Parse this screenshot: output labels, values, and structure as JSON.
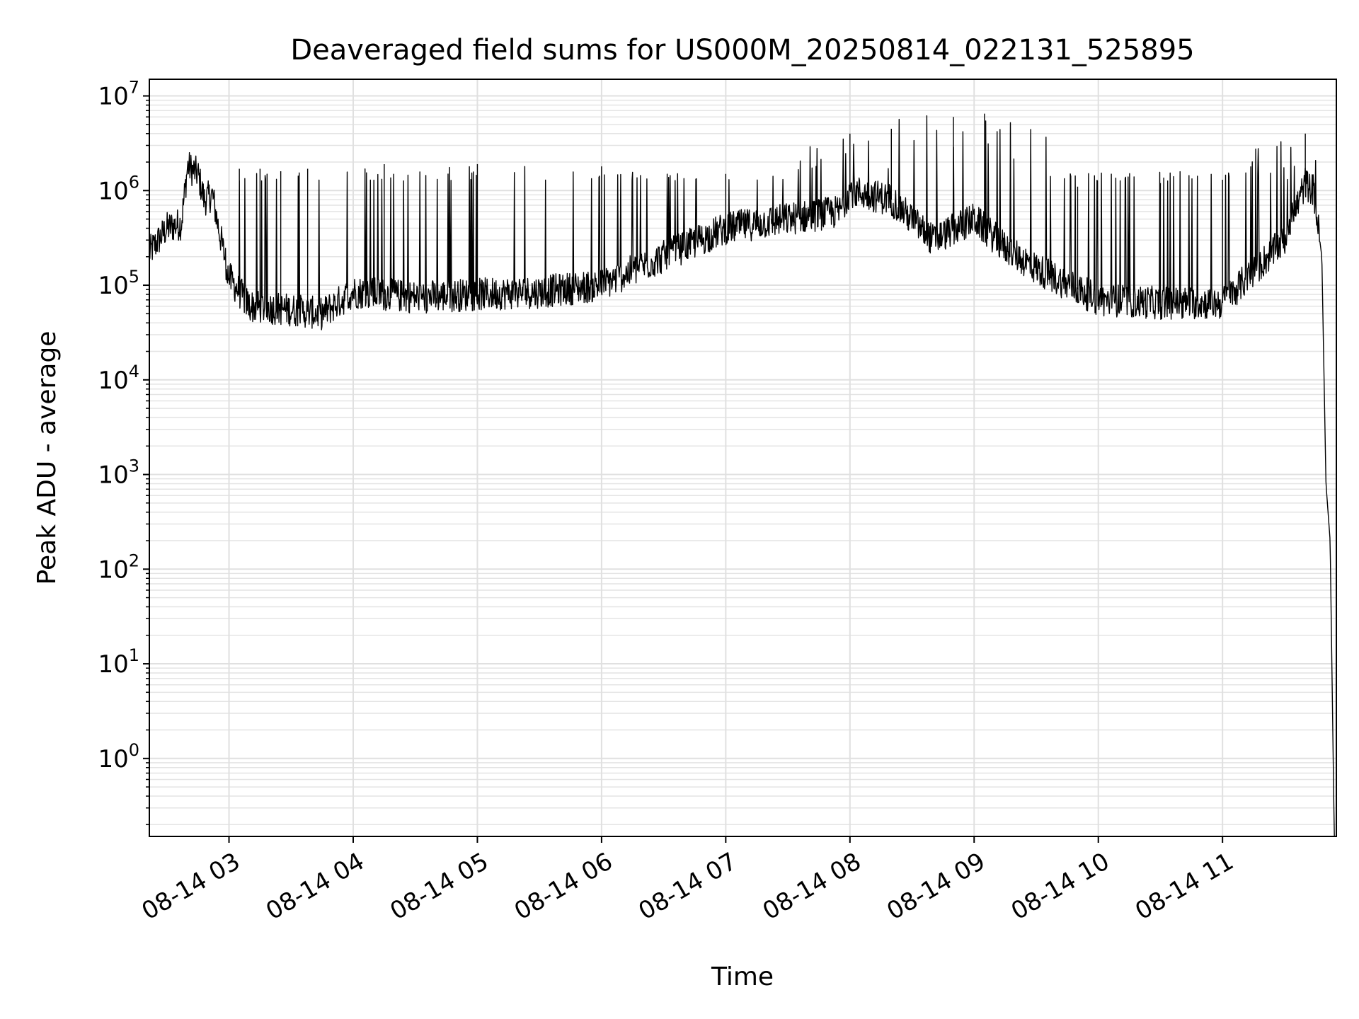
{
  "chart_data": {
    "type": "line",
    "title": "Deaveraged field sums for US000M_20250814_022131_525895",
    "xlabel": "Time",
    "ylabel": "Peak ADU - average",
    "yscale": "log",
    "ylim": [
      0.15,
      15000000
    ],
    "xlim": [
      "2025-08-14 02:21:31",
      "2025-08-14 11:55:00"
    ],
    "grid": true,
    "x_ticks": [
      {
        "time": "2025-08-14 03:00",
        "label": "08-14 03"
      },
      {
        "time": "2025-08-14 04:00",
        "label": "08-14 04"
      },
      {
        "time": "2025-08-14 05:00",
        "label": "08-14 05"
      },
      {
        "time": "2025-08-14 06:00",
        "label": "08-14 06"
      },
      {
        "time": "2025-08-14 07:00",
        "label": "08-14 07"
      },
      {
        "time": "2025-08-14 08:00",
        "label": "08-14 08"
      },
      {
        "time": "2025-08-14 09:00",
        "label": "08-14 09"
      },
      {
        "time": "2025-08-14 10:00",
        "label": "08-14 10"
      },
      {
        "time": "2025-08-14 11:00",
        "label": "08-14 11"
      }
    ],
    "y_ticks": [
      {
        "value": 1,
        "base": "10",
        "exp": "0"
      },
      {
        "value": 10,
        "base": "10",
        "exp": "1"
      },
      {
        "value": 100,
        "base": "10",
        "exp": "2"
      },
      {
        "value": 1000,
        "base": "10",
        "exp": "3"
      },
      {
        "value": 10000,
        "base": "10",
        "exp": "4"
      },
      {
        "value": 100000,
        "base": "10",
        "exp": "5"
      },
      {
        "value": 1000000,
        "base": "10",
        "exp": "6"
      },
      {
        "value": 10000000,
        "base": "10",
        "exp": "7"
      }
    ],
    "series": [
      {
        "color": "#000000",
        "baseline_points": [
          {
            "t": "2025-08-14 02:21:31",
            "v": 220000
          },
          {
            "t": "2025-08-14 02:30",
            "v": 400000
          },
          {
            "t": "2025-08-14 02:37",
            "v": 450000
          },
          {
            "t": "2025-08-14 02:40",
            "v": 1800000
          },
          {
            "t": "2025-08-14 02:45",
            "v": 1500000
          },
          {
            "t": "2025-08-14 02:48",
            "v": 800000
          },
          {
            "t": "2025-08-14 02:52",
            "v": 900000
          },
          {
            "t": "2025-08-14 02:55",
            "v": 400000
          },
          {
            "t": "2025-08-14 03:00",
            "v": 120000
          },
          {
            "t": "2025-08-14 03:10",
            "v": 60000
          },
          {
            "t": "2025-08-14 03:30",
            "v": 55000
          },
          {
            "t": "2025-08-14 03:45",
            "v": 50000
          },
          {
            "t": "2025-08-14 04:00",
            "v": 85000
          },
          {
            "t": "2025-08-14 04:30",
            "v": 75000
          },
          {
            "t": "2025-08-14 05:00",
            "v": 80000
          },
          {
            "t": "2025-08-14 05:30",
            "v": 85000
          },
          {
            "t": "2025-08-14 06:00",
            "v": 100000
          },
          {
            "t": "2025-08-14 06:30",
            "v": 200000
          },
          {
            "t": "2025-08-14 07:00",
            "v": 400000
          },
          {
            "t": "2025-08-14 07:30",
            "v": 500000
          },
          {
            "t": "2025-08-14 07:55",
            "v": 600000
          },
          {
            "t": "2025-08-14 08:00",
            "v": 1000000
          },
          {
            "t": "2025-08-14 08:20",
            "v": 800000
          },
          {
            "t": "2025-08-14 08:40",
            "v": 300000
          },
          {
            "t": "2025-08-14 09:00",
            "v": 500000
          },
          {
            "t": "2025-08-14 09:15",
            "v": 250000
          },
          {
            "t": "2025-08-14 09:30",
            "v": 150000
          },
          {
            "t": "2025-08-14 10:00",
            "v": 70000
          },
          {
            "t": "2025-08-14 10:30",
            "v": 65000
          },
          {
            "t": "2025-08-14 11:00",
            "v": 65000
          },
          {
            "t": "2025-08-14 11:30",
            "v": 300000
          },
          {
            "t": "2025-08-14 11:40",
            "v": 1200000
          },
          {
            "t": "2025-08-14 11:44",
            "v": 1000000
          },
          {
            "t": "2025-08-14 11:48",
            "v": 200000
          },
          {
            "t": "2025-08-14 11:50",
            "v": 800
          },
          {
            "t": "2025-08-14 11:52",
            "v": 200
          },
          {
            "t": "2025-08-14 11:54",
            "v": 0.15
          }
        ],
        "spike_peaks": [
          {
            "t": "2025-08-14 03:05",
            "v": 1700000
          },
          {
            "t": "2025-08-14 03:15",
            "v": 1700000
          },
          {
            "t": "2025-08-14 03:25",
            "v": 1600000
          },
          {
            "t": "2025-08-14 03:38",
            "v": 1700000
          },
          {
            "t": "2025-08-14 04:15",
            "v": 1900000
          },
          {
            "t": "2025-08-14 05:00",
            "v": 1900000
          },
          {
            "t": "2025-08-14 06:00",
            "v": 1800000
          },
          {
            "t": "2025-08-14 07:00",
            "v": 1500000
          },
          {
            "t": "2025-08-14 08:00",
            "v": 4000000
          },
          {
            "t": "2025-08-14 08:20",
            "v": 4500000
          },
          {
            "t": "2025-08-14 08:50",
            "v": 6000000
          },
          {
            "t": "2025-08-14 09:05",
            "v": 6500000
          },
          {
            "t": "2025-08-14 09:50",
            "v": 1100000
          },
          {
            "t": "2025-08-14 10:30",
            "v": 1200000
          },
          {
            "t": "2025-08-14 11:00",
            "v": 1300000
          },
          {
            "t": "2025-08-14 11:40",
            "v": 4000000
          }
        ]
      }
    ]
  }
}
